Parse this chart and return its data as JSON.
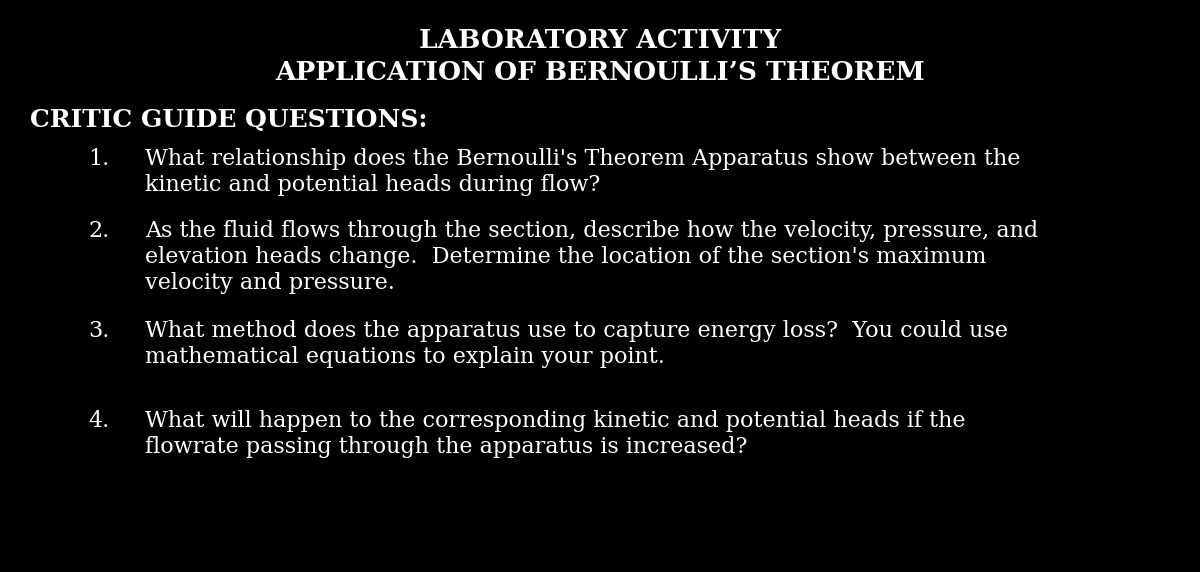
{
  "background_color": "#000000",
  "text_color": "#ffffff",
  "title_line1": "LABORATORY ACTIVITY",
  "title_line2": "APPLICATION OF BERNOULLI’S THEOREM",
  "section_header": "CRITIC GUIDE QUESTIONS:",
  "questions": [
    {
      "number": "1.",
      "lines": [
        "What relationship does the Bernoulli's Theorem Apparatus show between the",
        "kinetic and potential heads during flow?"
      ]
    },
    {
      "number": "2.",
      "lines": [
        "As the fluid flows through the section, describe how the velocity, pressure, and",
        "elevation heads change.  Determine the location of the section's maximum",
        "velocity and pressure."
      ]
    },
    {
      "number": "3.",
      "lines": [
        "What method does the apparatus use to capture energy loss?  You could use",
        "mathematical equations to explain your point."
      ]
    },
    {
      "number": "4.",
      "lines": [
        "What will happen to the corresponding kinetic and potential heads if the",
        "flowrate passing through the apparatus is increased?"
      ]
    }
  ],
  "title_fontsize": 19,
  "header_fontsize": 18,
  "body_fontsize": 16,
  "font_family": "DejaVu Serif"
}
